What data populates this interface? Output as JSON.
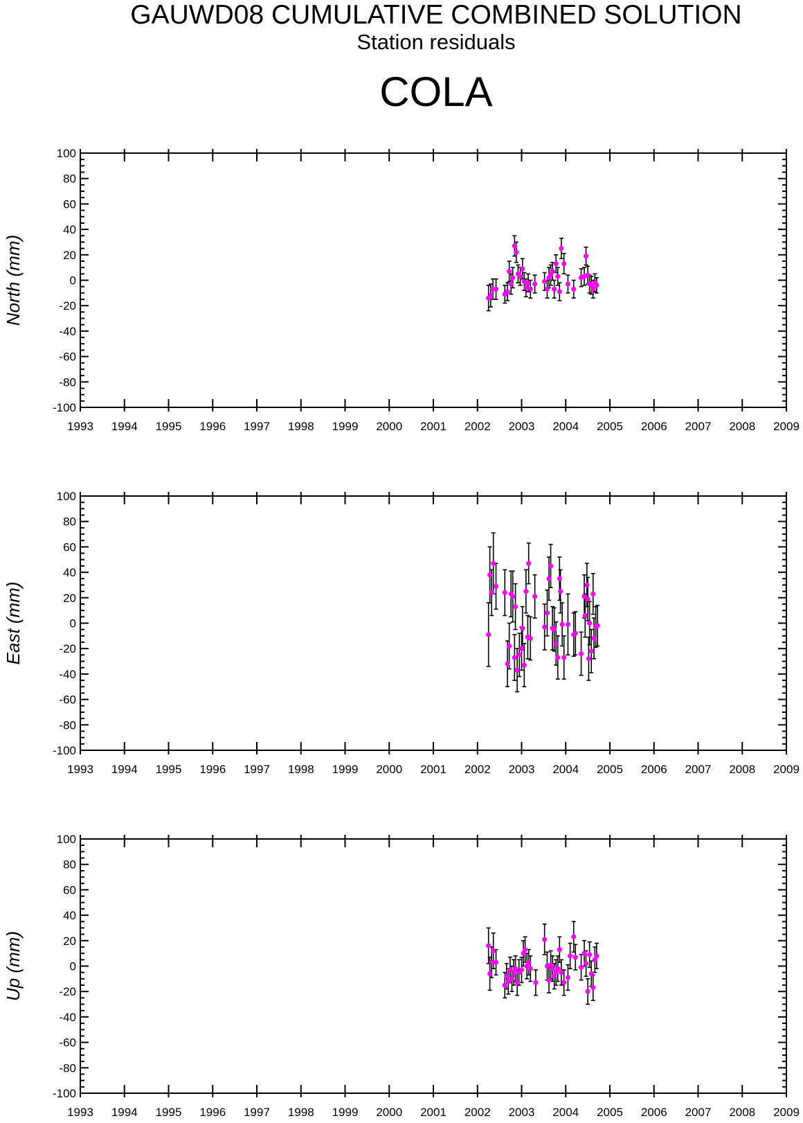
{
  "header": {
    "title": "GAUWD08 CUMULATIVE COMBINED SOLUTION",
    "subtitle": "Station residuals",
    "station": "COLA"
  },
  "chart_data": [
    {
      "type": "scatter",
      "ylabel": "North (mm)",
      "xlim": [
        1993,
        2009
      ],
      "ylim": [
        -100,
        100
      ],
      "xticks": [
        "1993",
        "1994",
        "1995",
        "1996",
        "1997",
        "1998",
        "1999",
        "2000",
        "2001",
        "2002",
        "2003",
        "2004",
        "2005",
        "2006",
        "2007",
        "2008",
        "2009"
      ],
      "yticks": [
        "100",
        "80",
        "60",
        "40",
        "20",
        "0",
        "-20",
        "-40",
        "-60",
        "-80",
        "-100"
      ],
      "point_color": "#ff00ff",
      "errorbar_color": "#000000",
      "points": [
        {
          "x": 2002.25,
          "y": -14,
          "err": 10
        },
        {
          "x": 2002.3,
          "y": -12,
          "err": 9
        },
        {
          "x": 2002.35,
          "y": -7,
          "err": 8
        },
        {
          "x": 2002.42,
          "y": -7,
          "err": 8
        },
        {
          "x": 2002.62,
          "y": -11,
          "err": 7
        },
        {
          "x": 2002.68,
          "y": -9,
          "err": 7
        },
        {
          "x": 2002.72,
          "y": 7,
          "err": 8
        },
        {
          "x": 2002.76,
          "y": -3,
          "err": 8
        },
        {
          "x": 2002.8,
          "y": 2,
          "err": 8
        },
        {
          "x": 2002.84,
          "y": 27,
          "err": 8
        },
        {
          "x": 2002.88,
          "y": 22,
          "err": 8
        },
        {
          "x": 2002.92,
          "y": 5,
          "err": 7
        },
        {
          "x": 2002.97,
          "y": 3,
          "err": 7
        },
        {
          "x": 2003.02,
          "y": 9,
          "err": 8
        },
        {
          "x": 2003.06,
          "y": -1,
          "err": 7
        },
        {
          "x": 2003.1,
          "y": -6,
          "err": 7
        },
        {
          "x": 2003.15,
          "y": -2,
          "err": 7
        },
        {
          "x": 2003.2,
          "y": -7,
          "err": 7
        },
        {
          "x": 2003.3,
          "y": -3,
          "err": 7
        },
        {
          "x": 2003.52,
          "y": -1,
          "err": 7
        },
        {
          "x": 2003.58,
          "y": -7,
          "err": 7
        },
        {
          "x": 2003.62,
          "y": 2,
          "err": 8
        },
        {
          "x": 2003.66,
          "y": 4,
          "err": 8
        },
        {
          "x": 2003.7,
          "y": 7,
          "err": 7
        },
        {
          "x": 2003.74,
          "y": -7,
          "err": 7
        },
        {
          "x": 2003.78,
          "y": 13,
          "err": 7
        },
        {
          "x": 2003.82,
          "y": 3,
          "err": 7
        },
        {
          "x": 2003.86,
          "y": -9,
          "err": 7
        },
        {
          "x": 2003.9,
          "y": 25,
          "err": 8
        },
        {
          "x": 2003.96,
          "y": 13,
          "err": 8
        },
        {
          "x": 2004.05,
          "y": -3,
          "err": 7
        },
        {
          "x": 2004.18,
          "y": -7,
          "err": 7
        },
        {
          "x": 2004.35,
          "y": 2,
          "err": 7
        },
        {
          "x": 2004.42,
          "y": 3,
          "err": 7
        },
        {
          "x": 2004.46,
          "y": 19,
          "err": 7
        },
        {
          "x": 2004.5,
          "y": 4,
          "err": 7
        },
        {
          "x": 2004.54,
          "y": -3,
          "err": 7
        },
        {
          "x": 2004.58,
          "y": -4,
          "err": 7
        },
        {
          "x": 2004.62,
          "y": -7,
          "err": 7
        },
        {
          "x": 2004.66,
          "y": -2,
          "err": 7
        },
        {
          "x": 2004.7,
          "y": -4,
          "err": 6
        }
      ]
    },
    {
      "type": "scatter",
      "ylabel": "East (mm)",
      "xlim": [
        1993,
        2009
      ],
      "ylim": [
        -100,
        100
      ],
      "xticks": [
        "1993",
        "1994",
        "1995",
        "1996",
        "1997",
        "1998",
        "1999",
        "2000",
        "2001",
        "2002",
        "2003",
        "2004",
        "2005",
        "2006",
        "2007",
        "2008",
        "2009"
      ],
      "yticks": [
        "100",
        "80",
        "60",
        "40",
        "20",
        "0",
        "-20",
        "-40",
        "-60",
        "-80",
        "-100"
      ],
      "point_color": "#ff00ff",
      "errorbar_color": "#000000",
      "points": [
        {
          "x": 2002.25,
          "y": -9,
          "err": 25
        },
        {
          "x": 2002.28,
          "y": 38,
          "err": 22
        },
        {
          "x": 2002.32,
          "y": 24,
          "err": 18
        },
        {
          "x": 2002.36,
          "y": 47,
          "err": 24
        },
        {
          "x": 2002.42,
          "y": 29,
          "err": 18
        },
        {
          "x": 2002.62,
          "y": 24,
          "err": 18
        },
        {
          "x": 2002.68,
          "y": -32,
          "err": 18
        },
        {
          "x": 2002.72,
          "y": -18,
          "err": 18
        },
        {
          "x": 2002.76,
          "y": 23,
          "err": 18
        },
        {
          "x": 2002.8,
          "y": 21,
          "err": 20
        },
        {
          "x": 2002.84,
          "y": -27,
          "err": 18
        },
        {
          "x": 2002.86,
          "y": 13,
          "err": 18
        },
        {
          "x": 2002.9,
          "y": -37,
          "err": 17
        },
        {
          "x": 2002.95,
          "y": -25,
          "err": 17
        },
        {
          "x": 2003.0,
          "y": -20,
          "err": 17
        },
        {
          "x": 2003.02,
          "y": -4,
          "err": 17
        },
        {
          "x": 2003.06,
          "y": -33,
          "err": 17
        },
        {
          "x": 2003.1,
          "y": 25,
          "err": 17
        },
        {
          "x": 2003.14,
          "y": -11,
          "err": 17
        },
        {
          "x": 2003.16,
          "y": 47,
          "err": 16
        },
        {
          "x": 2003.2,
          "y": -12,
          "err": 17
        },
        {
          "x": 2003.3,
          "y": 21,
          "err": 17
        },
        {
          "x": 2003.52,
          "y": -3,
          "err": 18
        },
        {
          "x": 2003.58,
          "y": 8,
          "err": 18
        },
        {
          "x": 2003.62,
          "y": 35,
          "err": 17
        },
        {
          "x": 2003.66,
          "y": 45,
          "err": 17
        },
        {
          "x": 2003.7,
          "y": -4,
          "err": 17
        },
        {
          "x": 2003.74,
          "y": -5,
          "err": 17
        },
        {
          "x": 2003.78,
          "y": -16,
          "err": 17
        },
        {
          "x": 2003.82,
          "y": -27,
          "err": 17
        },
        {
          "x": 2003.86,
          "y": 35,
          "err": 17
        },
        {
          "x": 2003.88,
          "y": 25,
          "err": 17
        },
        {
          "x": 2003.92,
          "y": -1,
          "err": 17
        },
        {
          "x": 2003.96,
          "y": -27,
          "err": 17
        },
        {
          "x": 2004.05,
          "y": -1,
          "err": 24
        },
        {
          "x": 2004.18,
          "y": -9,
          "err": 17
        },
        {
          "x": 2004.22,
          "y": -8,
          "err": 17
        },
        {
          "x": 2004.35,
          "y": -24,
          "err": 17
        },
        {
          "x": 2004.42,
          "y": 21,
          "err": 17
        },
        {
          "x": 2004.44,
          "y": 6,
          "err": 17
        },
        {
          "x": 2004.48,
          "y": 30,
          "err": 17
        },
        {
          "x": 2004.5,
          "y": 19,
          "err": 17
        },
        {
          "x": 2004.52,
          "y": -28,
          "err": 17
        },
        {
          "x": 2004.54,
          "y": 0,
          "err": 17
        },
        {
          "x": 2004.58,
          "y": -22,
          "err": 17
        },
        {
          "x": 2004.62,
          "y": 23,
          "err": 16
        },
        {
          "x": 2004.64,
          "y": -12,
          "err": 16
        },
        {
          "x": 2004.68,
          "y": -3,
          "err": 16
        },
        {
          "x": 2004.72,
          "y": -2,
          "err": 16
        }
      ]
    },
    {
      "type": "scatter",
      "ylabel": "Up (mm)",
      "xlim": [
        1993,
        2009
      ],
      "ylim": [
        -100,
        100
      ],
      "xticks": [
        "1993",
        "1994",
        "1995",
        "1996",
        "1997",
        "1998",
        "1999",
        "2000",
        "2001",
        "2002",
        "2003",
        "2004",
        "2005",
        "2006",
        "2007",
        "2008",
        "2009"
      ],
      "yticks": [
        "100",
        "80",
        "60",
        "40",
        "20",
        "0",
        "-20",
        "-40",
        "-60",
        "-80",
        "-100"
      ],
      "point_color": "#ff00ff",
      "errorbar_color": "#000000",
      "points": [
        {
          "x": 2002.25,
          "y": 16,
          "err": 14
        },
        {
          "x": 2002.28,
          "y": -6,
          "err": 13
        },
        {
          "x": 2002.32,
          "y": 3,
          "err": 12
        },
        {
          "x": 2002.36,
          "y": 12,
          "err": 14
        },
        {
          "x": 2002.42,
          "y": 3,
          "err": 10
        },
        {
          "x": 2002.62,
          "y": -15,
          "err": 10
        },
        {
          "x": 2002.66,
          "y": -8,
          "err": 10
        },
        {
          "x": 2002.7,
          "y": -12,
          "err": 10
        },
        {
          "x": 2002.74,
          "y": -3,
          "err": 10
        },
        {
          "x": 2002.78,
          "y": -10,
          "err": 10
        },
        {
          "x": 2002.82,
          "y": -5,
          "err": 10
        },
        {
          "x": 2002.86,
          "y": -2,
          "err": 10
        },
        {
          "x": 2002.9,
          "y": -13,
          "err": 10
        },
        {
          "x": 2002.94,
          "y": -5,
          "err": 10
        },
        {
          "x": 2003.0,
          "y": -3,
          "err": 10
        },
        {
          "x": 2003.04,
          "y": 10,
          "err": 10
        },
        {
          "x": 2003.08,
          "y": 13,
          "err": 10
        },
        {
          "x": 2003.12,
          "y": 0,
          "err": 10
        },
        {
          "x": 2003.16,
          "y": 3,
          "err": 10
        },
        {
          "x": 2003.2,
          "y": -2,
          "err": 10
        },
        {
          "x": 2003.32,
          "y": -13,
          "err": 10
        },
        {
          "x": 2003.52,
          "y": 21,
          "err": 12
        },
        {
          "x": 2003.58,
          "y": 0,
          "err": 11
        },
        {
          "x": 2003.62,
          "y": -11,
          "err": 10
        },
        {
          "x": 2003.66,
          "y": 1,
          "err": 11
        },
        {
          "x": 2003.7,
          "y": -2,
          "err": 10
        },
        {
          "x": 2003.74,
          "y": -8,
          "err": 10
        },
        {
          "x": 2003.78,
          "y": -5,
          "err": 10
        },
        {
          "x": 2003.82,
          "y": -2,
          "err": 10
        },
        {
          "x": 2003.86,
          "y": 13,
          "err": 10
        },
        {
          "x": 2003.9,
          "y": -5,
          "err": 10
        },
        {
          "x": 2003.96,
          "y": -13,
          "err": 10
        },
        {
          "x": 2004.05,
          "y": -9,
          "err": 10
        },
        {
          "x": 2004.1,
          "y": 8,
          "err": 10
        },
        {
          "x": 2004.18,
          "y": 23,
          "err": 12
        },
        {
          "x": 2004.22,
          "y": 7,
          "err": 10
        },
        {
          "x": 2004.35,
          "y": -1,
          "err": 10
        },
        {
          "x": 2004.42,
          "y": 10,
          "err": 10
        },
        {
          "x": 2004.46,
          "y": 2,
          "err": 10
        },
        {
          "x": 2004.5,
          "y": -20,
          "err": 10
        },
        {
          "x": 2004.54,
          "y": 9,
          "err": 10
        },
        {
          "x": 2004.58,
          "y": -6,
          "err": 10
        },
        {
          "x": 2004.62,
          "y": -17,
          "err": 10
        },
        {
          "x": 2004.66,
          "y": 5,
          "err": 10
        },
        {
          "x": 2004.7,
          "y": 8,
          "err": 10
        }
      ]
    }
  ]
}
